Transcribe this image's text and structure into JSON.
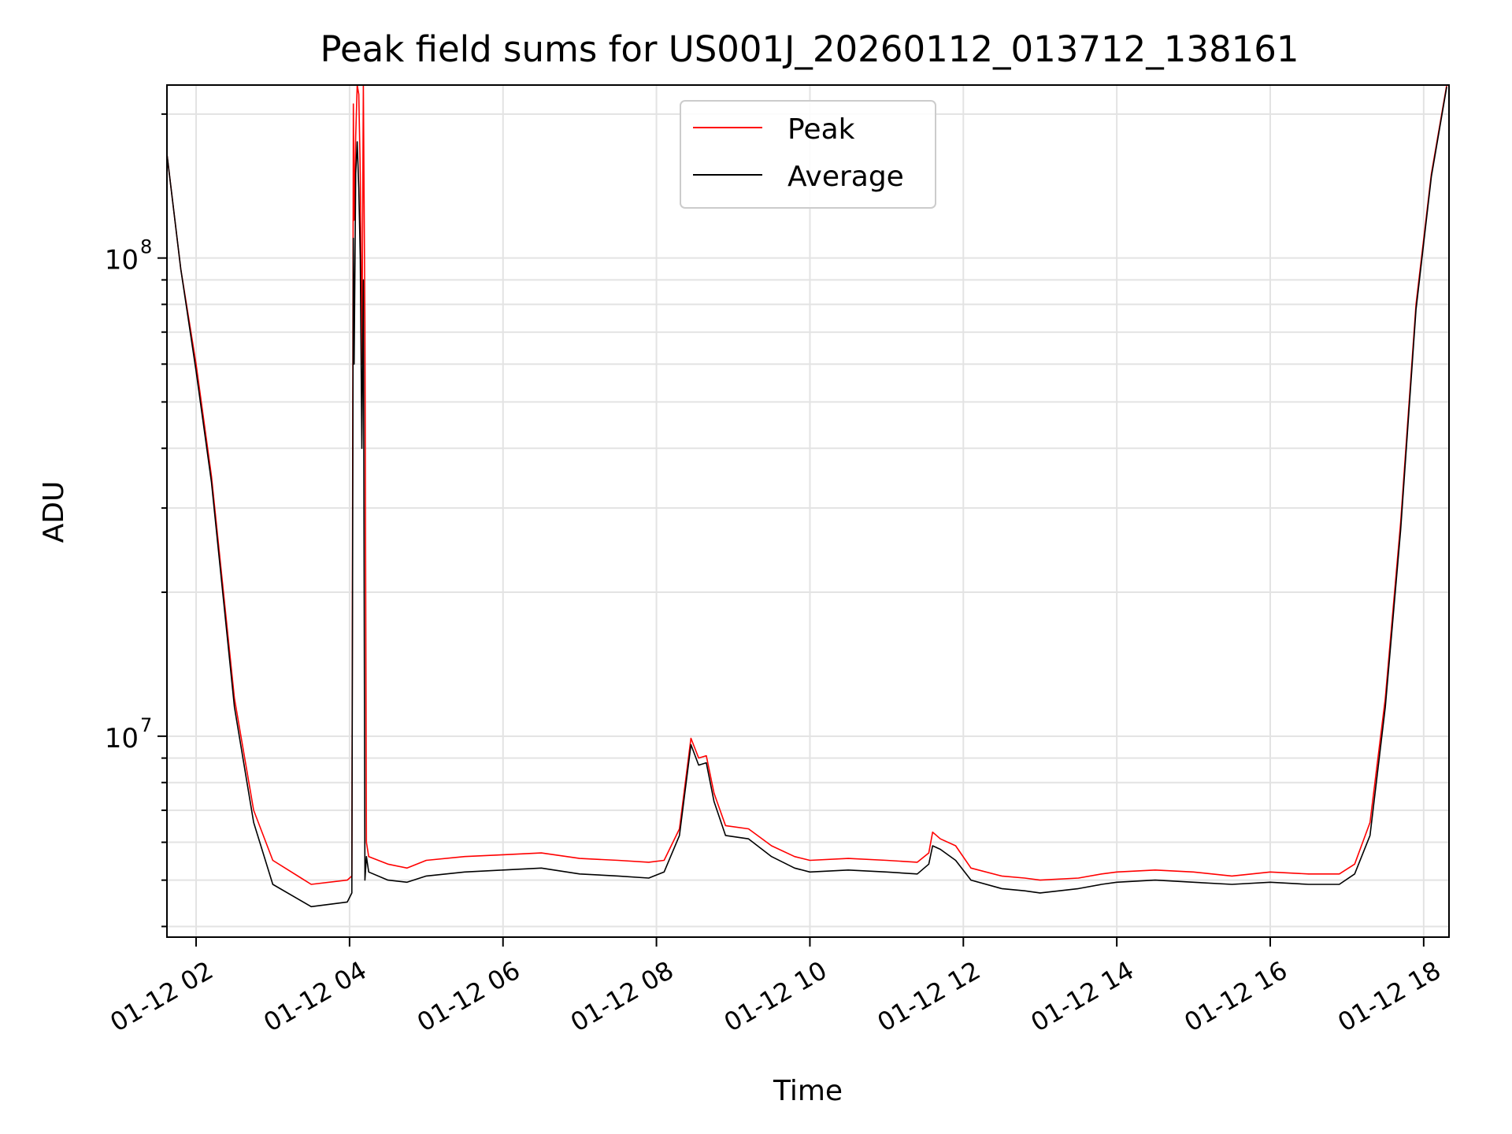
{
  "chart_data": {
    "type": "line",
    "title": "Peak field sums for US001J_20260112_013712_138161",
    "xlabel": "Time",
    "ylabel": "ADU",
    "yscale": "log",
    "grid": true,
    "legend_placement": "top-center",
    "xlim": [
      1.62,
      18.33
    ],
    "ylim": [
      3800000,
      230000000
    ],
    "x_ticks": [
      {
        "value": 2,
        "label": "01-12 02"
      },
      {
        "value": 4,
        "label": "01-12 04"
      },
      {
        "value": 6,
        "label": "01-12 06"
      },
      {
        "value": 8,
        "label": "01-12 08"
      },
      {
        "value": 10,
        "label": "01-12 10"
      },
      {
        "value": 12,
        "label": "01-12 12"
      },
      {
        "value": 14,
        "label": "01-12 14"
      },
      {
        "value": 16,
        "label": "01-12 16"
      },
      {
        "value": 18,
        "label": "01-12 18"
      }
    ],
    "y_ticks": [
      {
        "value": 10000000,
        "base": "10",
        "exp": "7"
      },
      {
        "value": 100000000,
        "base": "10",
        "exp": "8"
      }
    ],
    "series": [
      {
        "name": "Peak",
        "color": "#ff0000",
        "x": [
          1.62,
          1.8,
          2.0,
          2.2,
          2.5,
          2.75,
          3.0,
          3.5,
          3.97,
          4.03,
          4.05,
          4.06,
          4.08,
          4.1,
          4.12,
          4.14,
          4.16,
          4.18,
          4.2,
          4.22,
          4.25,
          4.5,
          4.75,
          5.0,
          5.5,
          6.0,
          6.5,
          7.0,
          7.5,
          7.9,
          8.1,
          8.3,
          8.45,
          8.55,
          8.65,
          8.75,
          8.9,
          9.2,
          9.5,
          9.8,
          10.0,
          10.5,
          11.0,
          11.4,
          11.55,
          11.6,
          11.7,
          11.9,
          12.1,
          12.5,
          12.8,
          13.0,
          13.5,
          13.8,
          14.0,
          14.5,
          15.0,
          15.5,
          16.0,
          16.5,
          16.9,
          17.1,
          17.3,
          17.5,
          17.7,
          17.9,
          18.1,
          18.3
        ],
        "y": [
          165000000,
          95000000,
          60000000,
          35000000,
          12000000,
          7000000,
          5500000,
          4900000,
          5000000,
          5100000,
          210000000,
          120000000,
          180000000,
          230000000,
          220000000,
          150000000,
          60000000,
          230000000,
          73000000,
          6000000,
          5600000,
          5400000,
          5300000,
          5500000,
          5600000,
          5650000,
          5700000,
          5550000,
          5500000,
          5450000,
          5500000,
          6400000,
          9900000,
          9000000,
          9100000,
          7600000,
          6500000,
          6400000,
          5900000,
          5600000,
          5500000,
          5550000,
          5500000,
          5450000,
          5700000,
          6300000,
          6100000,
          5900000,
          5300000,
          5100000,
          5050000,
          5000000,
          5050000,
          5150000,
          5200000,
          5250000,
          5200000,
          5100000,
          5200000,
          5150000,
          5150000,
          5400000,
          6600000,
          12000000,
          28000000,
          80000000,
          150000000,
          230000000
        ]
      },
      {
        "name": "Average",
        "color": "#000000",
        "x": [
          1.62,
          1.8,
          2.0,
          2.2,
          2.5,
          2.75,
          3.0,
          3.5,
          3.97,
          4.03,
          4.05,
          4.06,
          4.08,
          4.1,
          4.12,
          4.14,
          4.16,
          4.18,
          4.2,
          4.22,
          4.25,
          4.5,
          4.75,
          5.0,
          5.5,
          6.0,
          6.5,
          7.0,
          7.5,
          7.9,
          8.1,
          8.3,
          8.45,
          8.55,
          8.65,
          8.75,
          8.9,
          9.2,
          9.5,
          9.8,
          10.0,
          10.5,
          11.0,
          11.4,
          11.55,
          11.6,
          11.7,
          11.9,
          12.1,
          12.5,
          12.8,
          13.0,
          13.5,
          13.8,
          14.0,
          14.5,
          15.0,
          15.5,
          16.0,
          16.5,
          16.9,
          17.1,
          17.3,
          17.5,
          17.7,
          17.9,
          18.1,
          18.3
        ],
        "y": [
          165000000,
          95000000,
          58000000,
          34000000,
          11500000,
          6600000,
          4900000,
          4400000,
          4500000,
          4700000,
          110000000,
          60000000,
          150000000,
          175000000,
          140000000,
          100000000,
          40000000,
          90000000,
          5000000,
          5600000,
          5200000,
          5000000,
          4950000,
          5100000,
          5200000,
          5250000,
          5300000,
          5150000,
          5100000,
          5050000,
          5200000,
          6200000,
          9600000,
          8700000,
          8800000,
          7300000,
          6200000,
          6100000,
          5600000,
          5300000,
          5200000,
          5250000,
          5200000,
          5150000,
          5400000,
          5900000,
          5800000,
          5500000,
          5000000,
          4800000,
          4750000,
          4700000,
          4800000,
          4900000,
          4950000,
          5000000,
          4950000,
          4900000,
          4950000,
          4900000,
          4900000,
          5150000,
          6200000,
          11500000,
          27000000,
          78000000,
          148000000,
          228000000
        ]
      }
    ]
  }
}
